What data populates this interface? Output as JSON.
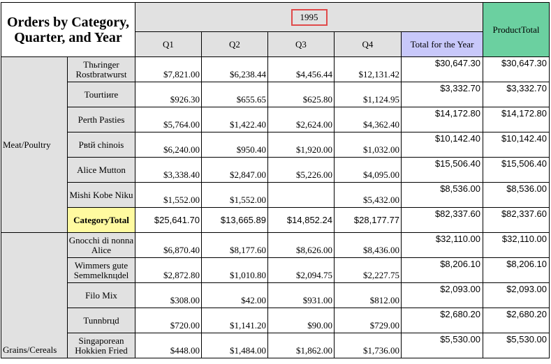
{
  "header": {
    "title": "Orders by Category, Quarter, and Year",
    "year": "1995",
    "quarters": [
      "Q1",
      "Q2",
      "Q3",
      "Q4"
    ],
    "total_for_year": "Total for the Year",
    "product_total": "ProductTotal"
  },
  "colors": {
    "header_bg": "#e1e1e1",
    "product_total_bg": "#6bd0a0",
    "total_for_year_bg": "#c8c8fa",
    "category_total_bg": "#fffaa0",
    "year_box_border": "#e04a4a"
  },
  "categories": [
    {
      "name": "Meat/Poultry",
      "rows": [
        {
          "product": "Thьringer Rostbratwurst",
          "q": [
            "$7,821.00",
            "$6,238.44",
            "$4,456.44",
            "$12,131.42"
          ],
          "year_total": "$30,647.30",
          "product_total": "$30,647.30"
        },
        {
          "product": "Tourtiиre",
          "q": [
            "$926.30",
            "$655.65",
            "$625.80",
            "$1,124.95"
          ],
          "year_total": "$3,332.70",
          "product_total": "$3,332.70"
        },
        {
          "product": "Perth Pasties",
          "q": [
            "$5,764.00",
            "$1,422.40",
            "$2,624.00",
            "$4,362.40"
          ],
          "year_total": "$14,172.80",
          "product_total": "$14,172.80"
        },
        {
          "product": "Pвtй chinois",
          "q": [
            "$6,240.00",
            "$950.40",
            "$1,920.00",
            "$1,032.00"
          ],
          "year_total": "$10,142.40",
          "product_total": "$10,142.40"
        },
        {
          "product": "Alice Mutton",
          "q": [
            "$3,338.40",
            "$2,847.00",
            "$5,226.00",
            "$4,095.00"
          ],
          "year_total": "$15,506.40",
          "product_total": "$15,506.40"
        },
        {
          "product": "Mishi Kobe Niku",
          "q": [
            "$1,552.00",
            "$1,552.00",
            "",
            "$5,432.00"
          ],
          "year_total": "$8,536.00",
          "product_total": "$8,536.00"
        }
      ],
      "total": {
        "label": "CategoryTotal",
        "q": [
          "$25,641.70",
          "$13,665.89",
          "$14,852.24",
          "$28,177.77"
        ],
        "year_total": "$82,337.60",
        "product_total": "$82,337.60"
      }
    },
    {
      "name": "Grains/Cereals",
      "rows": [
        {
          "product": "Gnocchi di nonna Alice",
          "q": [
            "$6,870.40",
            "$8,177.60",
            "$8,626.00",
            "$8,436.00"
          ],
          "year_total": "$32,110.00",
          "product_total": "$32,110.00"
        },
        {
          "product": "Wimmers gute Semmelknцdel",
          "q": [
            "$2,872.80",
            "$1,010.80",
            "$2,094.75",
            "$2,227.75"
          ],
          "year_total": "$8,206.10",
          "product_total": "$8,206.10"
        },
        {
          "product": "Filo Mix",
          "q": [
            "$308.00",
            "$42.00",
            "$931.00",
            "$812.00"
          ],
          "year_total": "$2,093.00",
          "product_total": "$2,093.00"
        },
        {
          "product": "Tunnbrцd",
          "q": [
            "$720.00",
            "$1,141.20",
            "$90.00",
            "$729.00"
          ],
          "year_total": "$2,680.20",
          "product_total": "$2,680.20"
        },
        {
          "product": "Singaporean Hokkien Fried",
          "q": [
            "$448.00",
            "$1,484.00",
            "$1,862.00",
            "$1,736.00"
          ],
          "year_total": "$5,530.00",
          "product_total": "$5,530.00"
        }
      ]
    }
  ]
}
